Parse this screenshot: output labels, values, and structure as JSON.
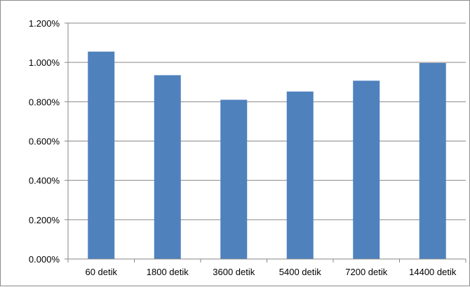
{
  "chart_data": {
    "type": "bar",
    "title": "",
    "xlabel": "",
    "ylabel": "",
    "categories": [
      "60 detik",
      "1800 detik",
      "3600 detik",
      "5400 detik",
      "7200 detik",
      "14400 detik"
    ],
    "values": [
      1.055,
      0.935,
      0.81,
      0.852,
      0.907,
      0.997
    ],
    "ylim": [
      0,
      1.2
    ],
    "y_ticks": [
      0,
      0.2,
      0.4,
      0.6,
      0.8,
      1.0,
      1.2
    ],
    "y_tick_labels": [
      "0.000%",
      "0.200%",
      "0.400%",
      "0.600%",
      "0.800%",
      "1.000%",
      "1.200%"
    ],
    "grid": true,
    "legend": "none",
    "bar_color": "#4f81bd",
    "grid_color": "#878787"
  }
}
